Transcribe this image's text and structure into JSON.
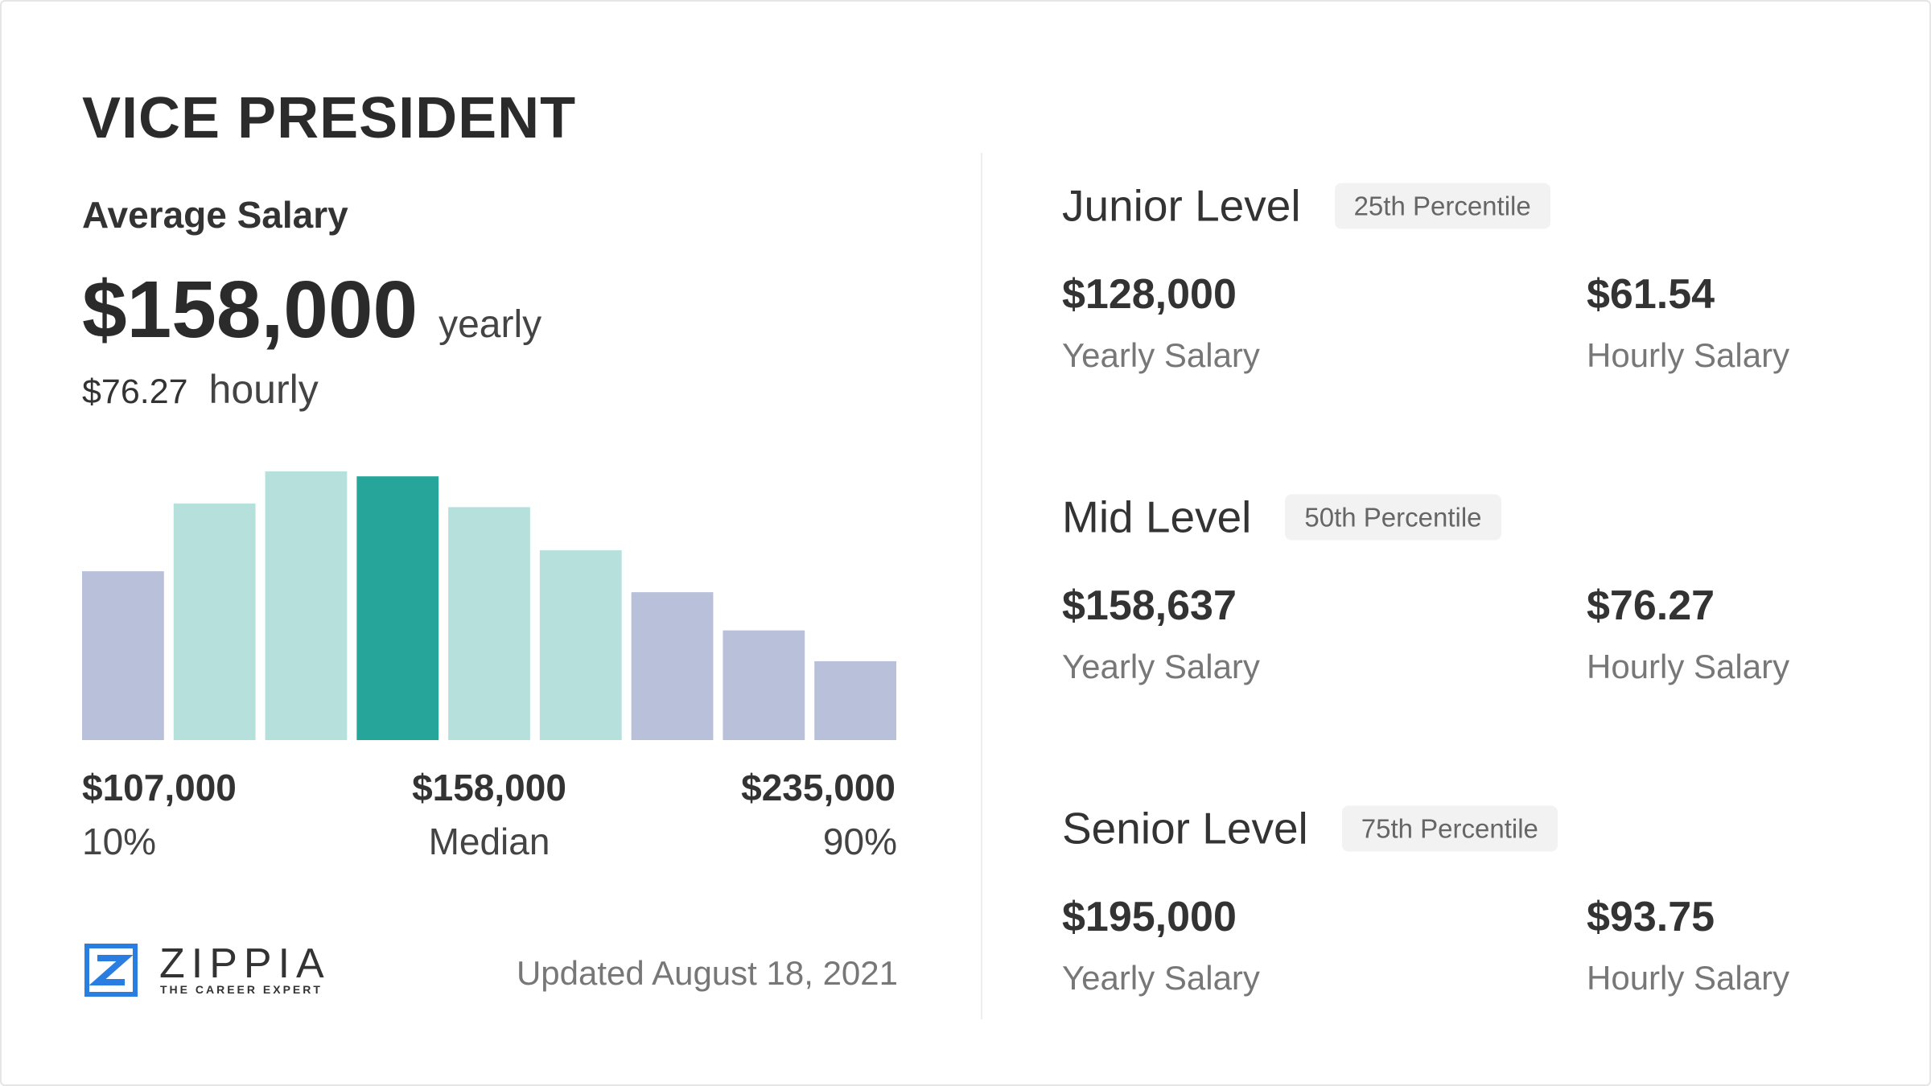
{
  "title": "VICE PRESIDENT",
  "average": {
    "label": "Average Salary",
    "yearly": "$158,000",
    "yearly_unit": "yearly",
    "hourly": "$76.27",
    "hourly_unit": "hourly"
  },
  "chart_data": {
    "type": "bar",
    "values": [
      137,
      192,
      218,
      214,
      189,
      154,
      120,
      89,
      64
    ],
    "colors": [
      "#b9c1da",
      "#b6e0dc",
      "#b6e0dc",
      "#26a69a",
      "#b6e0dc",
      "#b6e0dc",
      "#b9c1da",
      "#b9c1da",
      "#b9c1da"
    ]
  },
  "range_labels": [
    {
      "amount": "$107,000",
      "label": "10%"
    },
    {
      "amount": "$158,000",
      "label": "Median"
    },
    {
      "amount": "$235,000",
      "label": "90%"
    }
  ],
  "logo": {
    "name": "ZIPPIA",
    "tagline": "THE CAREER EXPERT"
  },
  "updated": "Updated August 18, 2021",
  "levels": [
    {
      "name": "Junior Level",
      "percentile": "25th Percentile",
      "yearly": "$128,000",
      "yearly_label": "Yearly Salary",
      "hourly": "$61.54",
      "hourly_label": "Hourly Salary"
    },
    {
      "name": "Mid Level",
      "percentile": "50th Percentile",
      "yearly": "$158,637",
      "yearly_label": "Yearly Salary",
      "hourly": "$76.27",
      "hourly_label": "Hourly Salary"
    },
    {
      "name": "Senior Level",
      "percentile": "75th Percentile",
      "yearly": "$195,000",
      "yearly_label": "Yearly Salary",
      "hourly": "$93.75",
      "hourly_label": "Hourly Salary"
    }
  ]
}
